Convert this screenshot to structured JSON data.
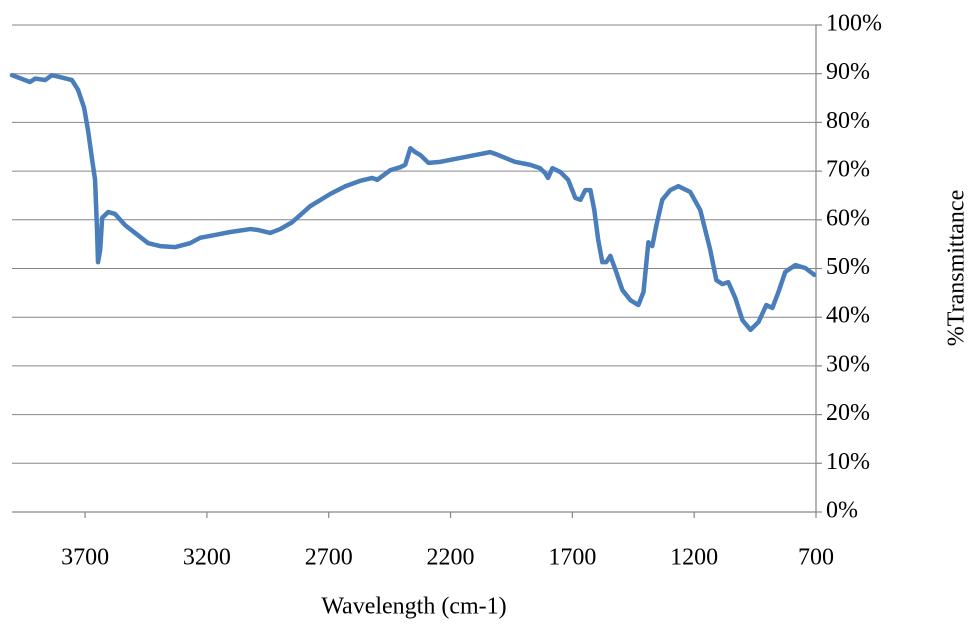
{
  "chart_data": {
    "type": "line",
    "x_label": "Wavelength (cm-1)",
    "y_label": "%Transmittance",
    "color": "#4a7ebb",
    "xlim": [
      4000,
      700
    ],
    "xticks": [
      3700,
      3200,
      2700,
      2200,
      1700,
      1200,
      700
    ],
    "ylim": [
      0,
      100
    ],
    "yticks": [
      {
        "value": 0,
        "label": "0%"
      },
      {
        "value": 10,
        "label": "10%"
      },
      {
        "value": 20,
        "label": "20%"
      },
      {
        "value": 30,
        "label": "30%"
      },
      {
        "value": 40,
        "label": "40%"
      },
      {
        "value": 50,
        "label": "50%"
      },
      {
        "value": 60,
        "label": "60%"
      },
      {
        "value": 70,
        "label": "70%"
      },
      {
        "value": 80,
        "label": "80%"
      },
      {
        "value": 90,
        "label": "90%"
      },
      {
        "value": 100,
        "label": "100%"
      }
    ],
    "grid": true,
    "x": [
      4000,
      3926,
      3905,
      3864,
      3836,
      3803,
      3754,
      3729,
      3704,
      3688,
      3671,
      3659,
      3651,
      3647,
      3638,
      3630,
      3605,
      3577,
      3536,
      3495,
      3441,
      3392,
      3330,
      3269,
      3228,
      3166,
      3104,
      3022,
      2989,
      2940,
      2899,
      2850,
      2776,
      2694,
      2632,
      2571,
      2521,
      2501,
      2447,
      2406,
      2386,
      2365,
      2345,
      2324,
      2291,
      2242,
      2160,
      2078,
      2037,
      2004,
      1936,
      1874,
      1833,
      1812,
      1800,
      1782,
      1749,
      1717,
      1688,
      1667,
      1647,
      1626,
      1610,
      1594,
      1577,
      1561,
      1544,
      1520,
      1495,
      1462,
      1429,
      1408,
      1388,
      1372,
      1355,
      1331,
      1298,
      1265,
      1216,
      1175,
      1134,
      1109,
      1084,
      1060,
      1031,
      1002,
      969,
      936,
      904,
      879,
      854,
      826,
      785,
      744,
      707
    ],
    "values": [
      89.7,
      88.3,
      89.0,
      88.7,
      89.7,
      89.3,
      88.7,
      86.7,
      83.0,
      78.4,
      72.3,
      68.2,
      57.9,
      51.3,
      53.8,
      60.4,
      61.6,
      61.2,
      58.9,
      57.3,
      55.2,
      54.6,
      54.4,
      55.2,
      56.3,
      56.9,
      57.5,
      58.1,
      57.9,
      57.3,
      58.1,
      59.5,
      62.8,
      65.3,
      66.9,
      68.0,
      68.6,
      68.2,
      70.2,
      70.8,
      71.3,
      74.7,
      73.9,
      73.3,
      71.7,
      71.9,
      72.7,
      73.5,
      73.9,
      73.3,
      71.9,
      71.3,
      70.6,
      69.6,
      68.6,
      70.6,
      69.8,
      68.2,
      64.5,
      64.1,
      66.1,
      66.1,
      62.0,
      55.9,
      51.3,
      51.3,
      52.6,
      49.3,
      45.6,
      43.5,
      42.5,
      45.2,
      55.4,
      54.6,
      58.9,
      64.1,
      66.1,
      66.9,
      65.7,
      62.0,
      53.8,
      47.6,
      46.8,
      47.2,
      43.9,
      39.4,
      37.4,
      39.0,
      42.5,
      41.9,
      45.2,
      49.3,
      50.7,
      50.1,
      48.7
    ]
  }
}
